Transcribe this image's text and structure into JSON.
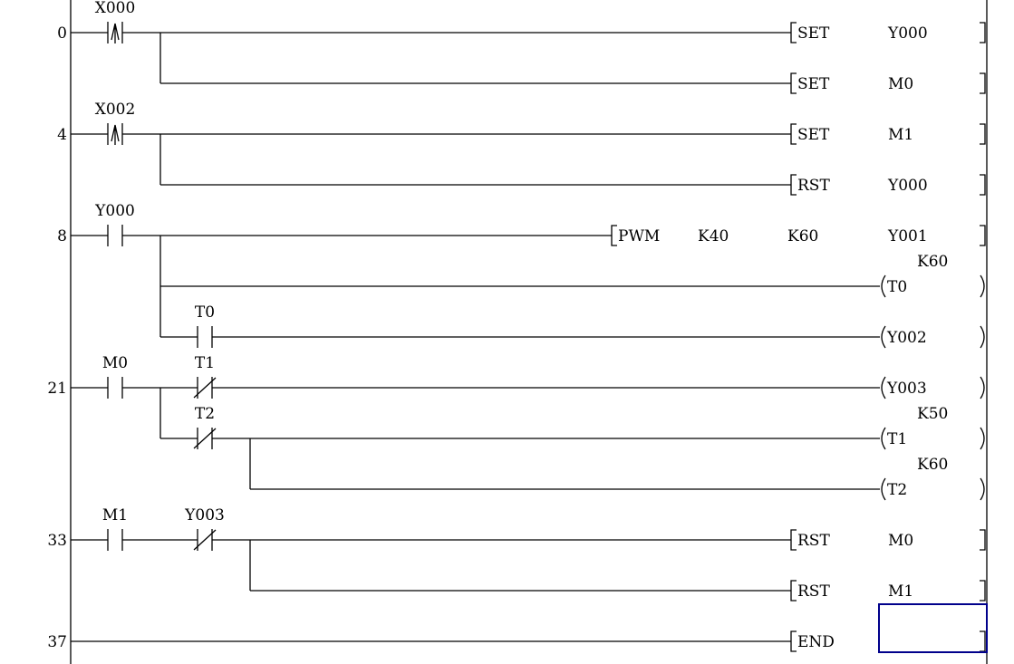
{
  "colors": {
    "line": "#000000",
    "selection": "#00008b",
    "background": "#ffffff"
  },
  "selected_row": 12,
  "rows": [
    {
      "step": "0",
      "contacts": [
        {
          "col": 0,
          "label": "X000",
          "type": "rising"
        }
      ],
      "output": {
        "kind": "instr",
        "op": "SET",
        "args": [
          "Y000"
        ]
      }
    },
    {
      "from_col": 0,
      "output": {
        "kind": "instr",
        "op": "SET",
        "args": [
          "M0"
        ]
      }
    },
    {
      "step": "4",
      "contacts": [
        {
          "col": 0,
          "label": "X002",
          "type": "rising"
        }
      ],
      "output": {
        "kind": "instr",
        "op": "SET",
        "args": [
          "M1"
        ]
      }
    },
    {
      "from_col": 0,
      "output": {
        "kind": "instr",
        "op": "RST",
        "args": [
          "Y000"
        ]
      }
    },
    {
      "step": "8",
      "contacts": [
        {
          "col": 0,
          "label": "Y000",
          "type": "no"
        }
      ],
      "output": {
        "kind": "pwm",
        "op": "PWM",
        "args": [
          "K40",
          "K60",
          "Y001"
        ]
      }
    },
    {
      "from_col": 0,
      "output": {
        "kind": "coil",
        "op": "T0",
        "preset": "K60"
      }
    },
    {
      "from_col": 0,
      "contacts": [
        {
          "col": 1,
          "label": "T0",
          "type": "no"
        }
      ],
      "output": {
        "kind": "coil",
        "op": "Y002"
      }
    },
    {
      "step": "21",
      "contacts": [
        {
          "col": 0,
          "label": "M0",
          "type": "no"
        },
        {
          "col": 1,
          "label": "T1",
          "type": "nc"
        }
      ],
      "output": {
        "kind": "coil",
        "op": "Y003"
      }
    },
    {
      "from_col": 0,
      "contacts": [
        {
          "col": 1,
          "label": "T2",
          "type": "nc"
        }
      ],
      "output": {
        "kind": "coil",
        "op": "T1",
        "preset": "K50"
      }
    },
    {
      "from_col": 1,
      "output": {
        "kind": "coil",
        "op": "T2",
        "preset": "K60"
      }
    },
    {
      "step": "33",
      "contacts": [
        {
          "col": 0,
          "label": "M1",
          "type": "no"
        },
        {
          "col": 1,
          "label": "Y003",
          "type": "nc"
        }
      ],
      "output": {
        "kind": "instr",
        "op": "RST",
        "args": [
          "M0"
        ]
      }
    },
    {
      "from_col": 1,
      "output": {
        "kind": "instr",
        "op": "RST",
        "args": [
          "M1"
        ]
      }
    },
    {
      "step": "37",
      "output": {
        "kind": "instr",
        "op": "END",
        "args": []
      }
    }
  ],
  "branches": [
    {
      "col": 0,
      "from_row": 0,
      "to_row": 1
    },
    {
      "col": 0,
      "from_row": 2,
      "to_row": 3
    },
    {
      "col": 0,
      "from_row": 4,
      "to_row": 6
    },
    {
      "col": 0,
      "from_row": 7,
      "to_row": 8
    },
    {
      "col": 1,
      "from_row": 8,
      "to_row": 9
    },
    {
      "col": 1,
      "from_row": 10,
      "to_row": 11
    }
  ]
}
